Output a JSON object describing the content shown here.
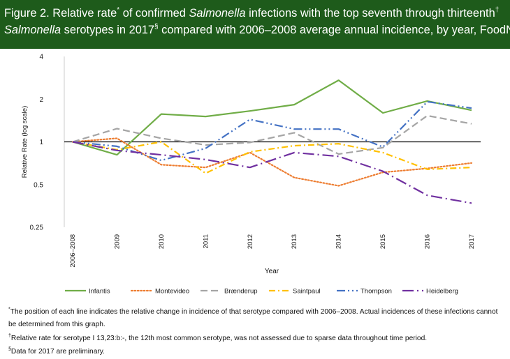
{
  "header": {
    "title_l1_a": "Figure 2. Relative rate",
    "title_l1_sup1": "*",
    "title_l1_b": " of confirmed ",
    "title_l1_italic": "Salmonella",
    "title_l1_c": " infections with the top seventh through thirteenth",
    "title_l1_sup2": "†",
    "title_l2_italic": "Salmonella",
    "title_l2_a": " serotypes in 2017",
    "title_l2_sup": "§",
    "title_l2_b": " compared with 2006–2008 average annual incidence, by year, FoodNet"
  },
  "chart_data": {
    "type": "line",
    "x": [
      "2006–2008",
      "2009",
      "2010",
      "2011",
      "2012",
      "2013",
      "2014",
      "2015",
      "2016",
      "2017"
    ],
    "xlabel": "Year",
    "ylabel": "Relative Rate (log scale)",
    "yscale": "log2",
    "ylim": [
      0.25,
      4
    ],
    "yticks": [
      0.25,
      0.5,
      1,
      2,
      4
    ],
    "ytick_labels": [
      "0.25",
      "0.5",
      "1",
      "2",
      "4"
    ],
    "reference_line": 1,
    "legend_position": "bottom",
    "series": [
      {
        "name": "Infantis",
        "color": "#70ad47",
        "style": "solid",
        "values": [
          1.0,
          0.81,
          1.57,
          1.51,
          1.65,
          1.83,
          2.72,
          1.6,
          1.94,
          1.67
        ]
      },
      {
        "name": "Montevideo",
        "color": "#ed7d31",
        "style": "dot",
        "values": [
          1.0,
          1.06,
          0.69,
          0.66,
          0.84,
          0.56,
          0.49,
          0.61,
          0.65,
          0.71
        ]
      },
      {
        "name": "Brænderup",
        "color": "#a5a5a5",
        "style": "dash",
        "values": [
          1.0,
          1.24,
          1.06,
          0.95,
          0.99,
          1.16,
          0.82,
          0.91,
          1.53,
          1.34
        ]
      },
      {
        "name": "Saintpaul",
        "color": "#ffc000",
        "style": "dashdot",
        "values": [
          1.0,
          0.88,
          1.0,
          0.6,
          0.85,
          0.94,
          0.97,
          0.84,
          0.64,
          0.66
        ]
      },
      {
        "name": "Thompson",
        "color": "#4472c4",
        "style": "dashdotdot",
        "values": [
          1.0,
          0.93,
          0.74,
          0.9,
          1.44,
          1.23,
          1.23,
          0.92,
          1.92,
          1.73
        ]
      },
      {
        "name": "Heidelberg",
        "color": "#7030a0",
        "style": "longdashdot",
        "values": [
          1.0,
          0.87,
          0.81,
          0.75,
          0.66,
          0.84,
          0.79,
          0.62,
          0.42,
          0.37
        ]
      }
    ]
  },
  "footnotes": {
    "f1_sup": "*",
    "f1_line1": "The position of each line indicates the relative change in incidence of that serotype compared with 2006–2008. Actual incidences of these infections cannot",
    "f1_line2": "be determined  from this graph.",
    "f2_sup": "†",
    "f2": "Relative rate for serotype I 13,23:b:-, the 12th most common serotype, was not assessed due to sparse data throughout time period.",
    "f3_sup": "§",
    "f3": "Data for 2017 are preliminary."
  }
}
